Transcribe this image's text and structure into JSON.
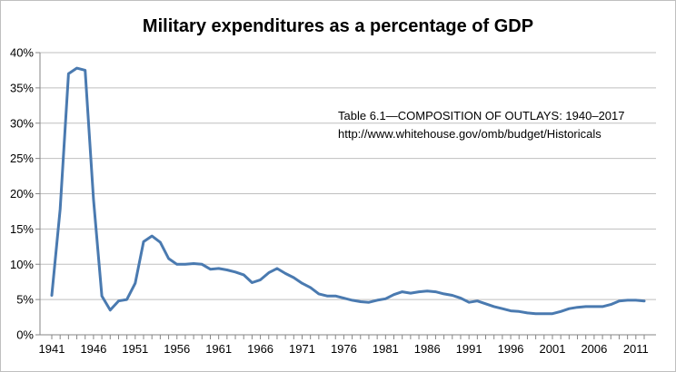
{
  "chart_data": {
    "type": "line",
    "title": "Military expenditures as a percentage of GDP",
    "xlabel": "",
    "ylabel": "",
    "xlim": [
      1941,
      2012
    ],
    "ylim": [
      0,
      40
    ],
    "grid": true,
    "legend": "none",
    "x_ticks": [
      "1941",
      "1946",
      "1951",
      "1956",
      "1961",
      "1966",
      "1971",
      "1976",
      "1981",
      "1986",
      "1991",
      "1996",
      "2001",
      "2006",
      "2011"
    ],
    "y_ticks": [
      "0%",
      "5%",
      "10%",
      "15%",
      "20%",
      "25%",
      "30%",
      "35%",
      "40%"
    ],
    "annotations": [
      "Table 6.1—COMPOSITION OF OUTLAYS: 1940–2017",
      "http://www.whitehouse.gov/omb/budget/Historicals"
    ],
    "series": [
      {
        "name": "Military expenditures",
        "color": "#4a7ab0",
        "x": [
          1941,
          1942,
          1943,
          1944,
          1945,
          1946,
          1947,
          1948,
          1949,
          1950,
          1951,
          1952,
          1953,
          1954,
          1955,
          1956,
          1957,
          1958,
          1959,
          1960,
          1961,
          1962,
          1963,
          1964,
          1965,
          1966,
          1967,
          1968,
          1969,
          1970,
          1971,
          1972,
          1973,
          1974,
          1975,
          1976,
          1977,
          1978,
          1979,
          1980,
          1981,
          1982,
          1983,
          1984,
          1985,
          1986,
          1987,
          1988,
          1989,
          1990,
          1991,
          1992,
          1993,
          1994,
          1995,
          1996,
          1997,
          1998,
          1999,
          2000,
          2001,
          2002,
          2003,
          2004,
          2005,
          2006,
          2007,
          2008,
          2009,
          2010,
          2011,
          2012
        ],
        "values": [
          5.6,
          17.8,
          37.0,
          37.8,
          37.5,
          19.2,
          5.5,
          3.5,
          4.8,
          5.0,
          7.3,
          13.2,
          14.0,
          13.1,
          10.8,
          10.0,
          10.0,
          10.1,
          10.0,
          9.3,
          9.4,
          9.2,
          8.9,
          8.5,
          7.4,
          7.8,
          8.8,
          9.4,
          8.7,
          8.1,
          7.3,
          6.7,
          5.8,
          5.5,
          5.5,
          5.2,
          4.9,
          4.7,
          4.6,
          4.9,
          5.1,
          5.7,
          6.1,
          5.9,
          6.1,
          6.2,
          6.1,
          5.8,
          5.6,
          5.2,
          4.6,
          4.8,
          4.4,
          4.0,
          3.7,
          3.4,
          3.3,
          3.1,
          3.0,
          3.0,
          3.0,
          3.3,
          3.7,
          3.9,
          4.0,
          4.0,
          4.0,
          4.3,
          4.8,
          4.9,
          4.9,
          4.8
        ]
      }
    ]
  }
}
